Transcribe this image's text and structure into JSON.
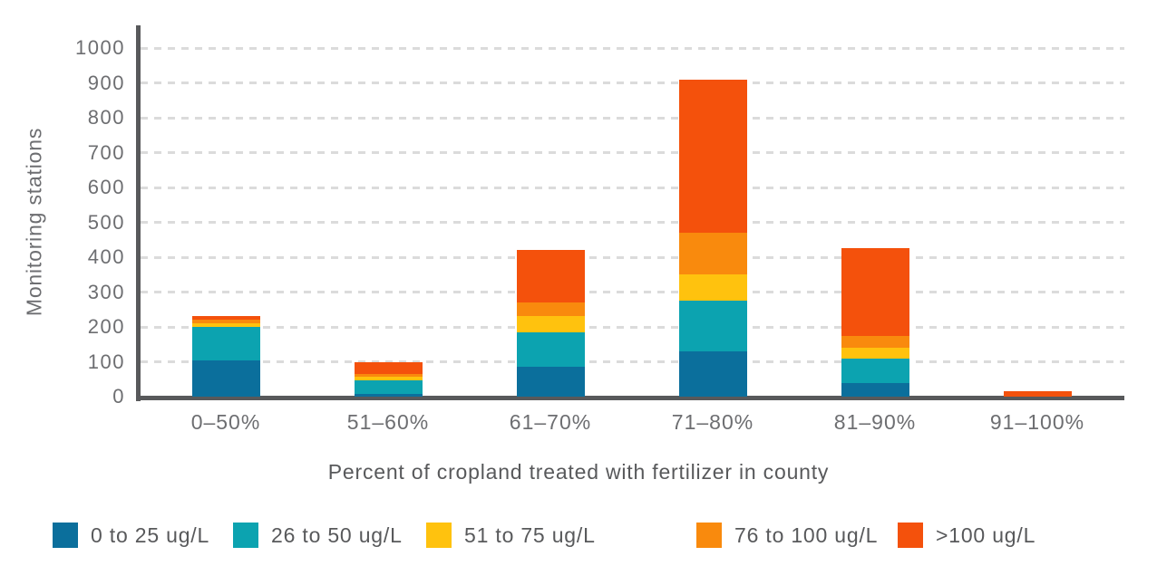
{
  "chart_data": {
    "type": "bar",
    "stacked": true,
    "title": "",
    "xlabel": "Percent of cropland treated with fertilizer in county",
    "ylabel": "Monitoring stations",
    "categories": [
      "0–50%",
      "51–60%",
      "61–70%",
      "71–80%",
      "81–90%",
      "91–100%"
    ],
    "y_ticks": [
      0,
      100,
      200,
      300,
      400,
      500,
      600,
      700,
      800,
      900,
      1000
    ],
    "ylim": [
      0,
      1000
    ],
    "grid": "horizontal-dashed",
    "legend_position": "bottom",
    "series": [
      {
        "name": "0 to 25 ug/L",
        "color": "#0B6F9C",
        "values": [
          105,
          8,
          85,
          130,
          40,
          0
        ]
      },
      {
        "name": "26 to 50 ug/L",
        "color": "#0CA3B0",
        "values": [
          95,
          40,
          100,
          145,
          70,
          0
        ]
      },
      {
        "name": "51 to 75 ug/L",
        "color": "#FFC20E",
        "values": [
          10,
          8,
          45,
          75,
          30,
          0
        ]
      },
      {
        "name": "76 to 100 ug/L",
        "color": "#F98A0D",
        "values": [
          10,
          8,
          40,
          120,
          35,
          0
        ]
      },
      {
        "name": ">100 ug/L",
        "color": "#F4510C",
        "values": [
          10,
          36,
          150,
          440,
          250,
          15
        ]
      }
    ],
    "totals": [
      230,
      100,
      420,
      910,
      425,
      15
    ]
  },
  "style_colors": {
    "axis_line": "#58595B",
    "tick_text": "#6D6E71",
    "gridline": "#DBDBDB",
    "background": "#FFFFFF"
  }
}
